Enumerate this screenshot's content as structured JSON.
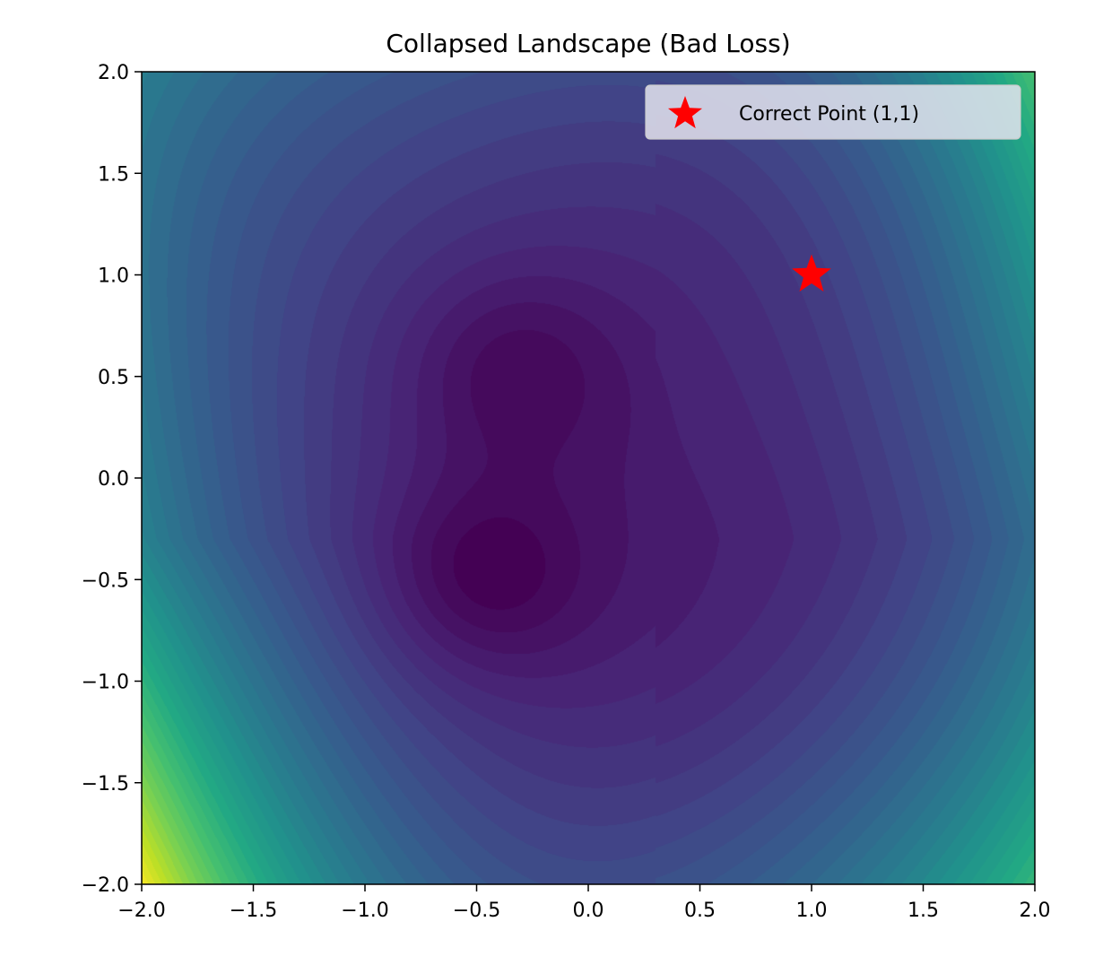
{
  "chart_data": {
    "type": "heatmap",
    "subtype": "filled-contour",
    "title": "Collapsed Landscape (Bad Loss)",
    "xlabel": "",
    "ylabel": "",
    "xlim": [
      -2.0,
      2.0
    ],
    "ylim": [
      -2.0,
      2.0
    ],
    "xticks": [
      "−2.0",
      "−1.5",
      "−1.0",
      "−0.5",
      "0.0",
      "0.5",
      "1.0",
      "1.5",
      "2.0"
    ],
    "yticks": [
      "2.0",
      "1.5",
      "1.0",
      "0.5",
      "0.0",
      "−0.5",
      "−1.0",
      "−1.5",
      "−2.0"
    ],
    "xtick_values": [
      -2.0,
      -1.5,
      -1.0,
      -0.5,
      0.0,
      0.5,
      1.0,
      1.5,
      2.0
    ],
    "ytick_values": [
      2.0,
      1.5,
      1.0,
      0.5,
      0.0,
      -0.5,
      -1.0,
      -1.5,
      -2.0
    ],
    "colormap": "viridis",
    "colormap_colors": [
      "#440154",
      "#482475",
      "#414487",
      "#355f8d",
      "#2a788e",
      "#21918c",
      "#22a884",
      "#44bf70",
      "#7ad151",
      "#bddf26",
      "#fde725"
    ],
    "grid": false,
    "minima": [
      {
        "x": -0.5,
        "y": -0.5,
        "depth": 1.0,
        "width": 0.35
      },
      {
        "x": -0.35,
        "y": 0.55,
        "depth": 0.8,
        "width": 0.35
      }
    ],
    "markers": [
      {
        "name": "Correct Point (1,1)",
        "x": 1.0,
        "y": 1.0,
        "symbol": "star",
        "color": "#ff0000"
      }
    ],
    "legend": {
      "placement": "top-right",
      "entries": [
        {
          "label": "Correct Point (1,1)",
          "symbol": "star",
          "color": "#ff0000"
        }
      ]
    }
  }
}
